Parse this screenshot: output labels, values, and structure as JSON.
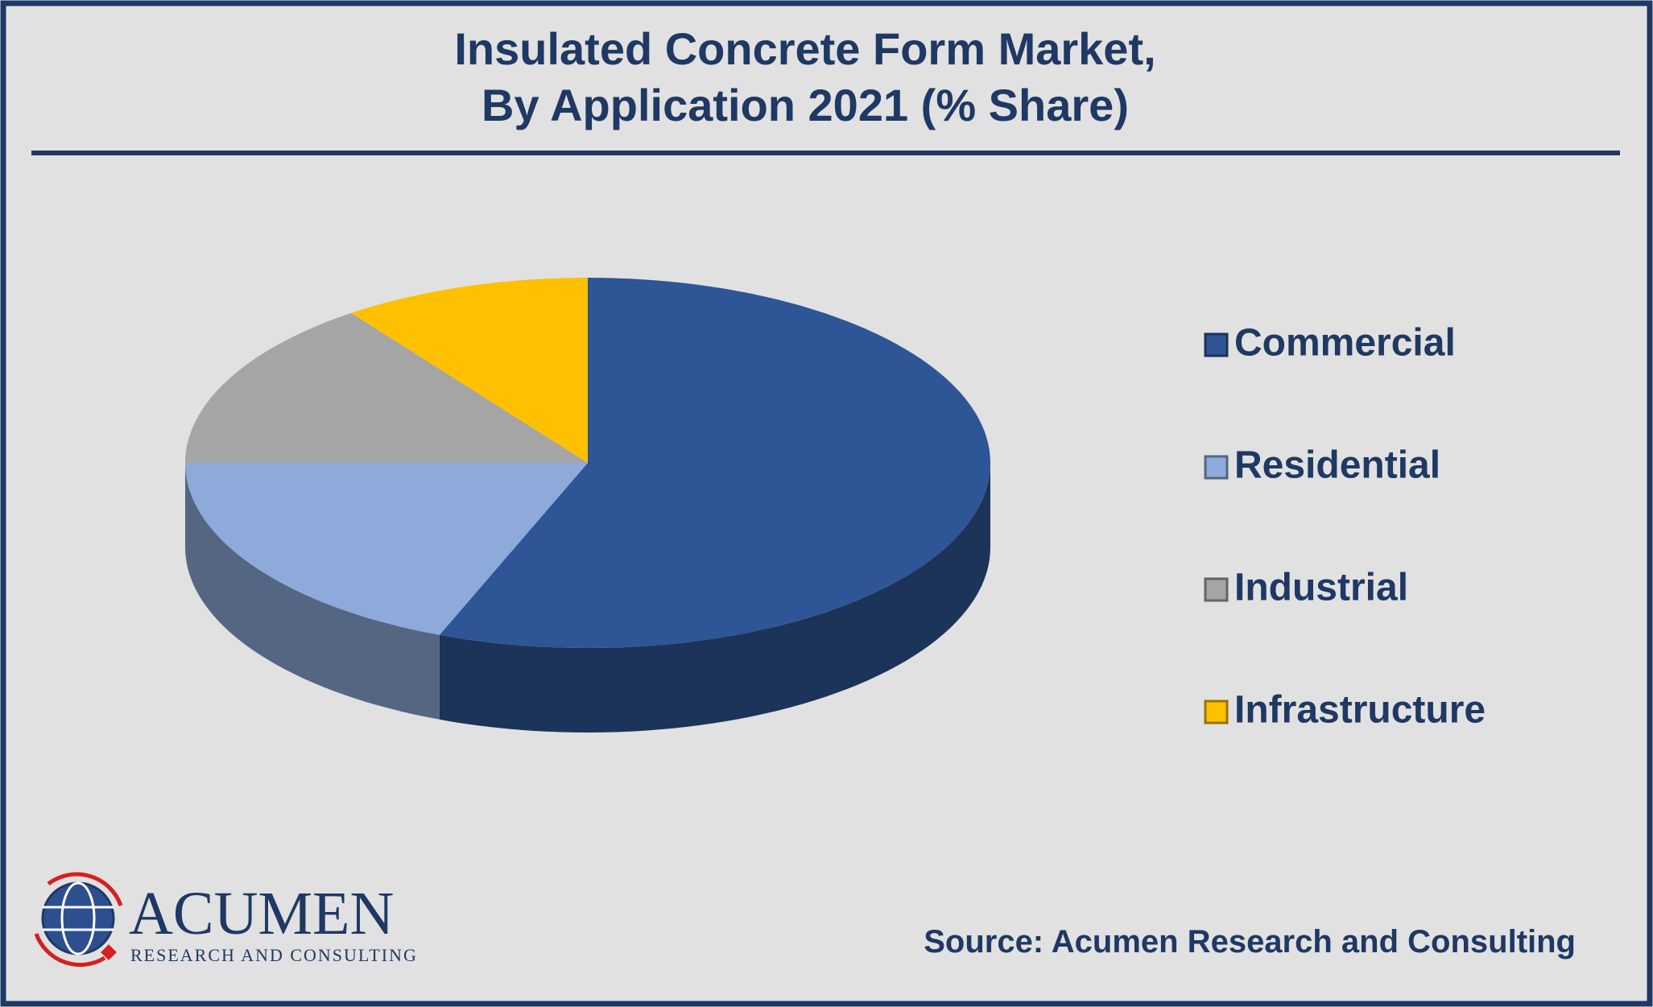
{
  "chart_data": {
    "type": "pie",
    "title": "Insulated Concrete Form Market,",
    "subtitle": "By Application 2021 (% Share)",
    "categories": [
      "Commercial",
      "Residential",
      "Industrial",
      "Infrastructure"
    ],
    "values": [
      56,
      19,
      15,
      10
    ],
    "colors": [
      "#2e5596",
      "#8eaadb",
      "#a5a5a5",
      "#ffc000"
    ],
    "source": "Source: Acumen Research and Consulting"
  },
  "logo": {
    "name": "ACUMEN",
    "tagline": "RESEARCH AND CONSULTING"
  }
}
